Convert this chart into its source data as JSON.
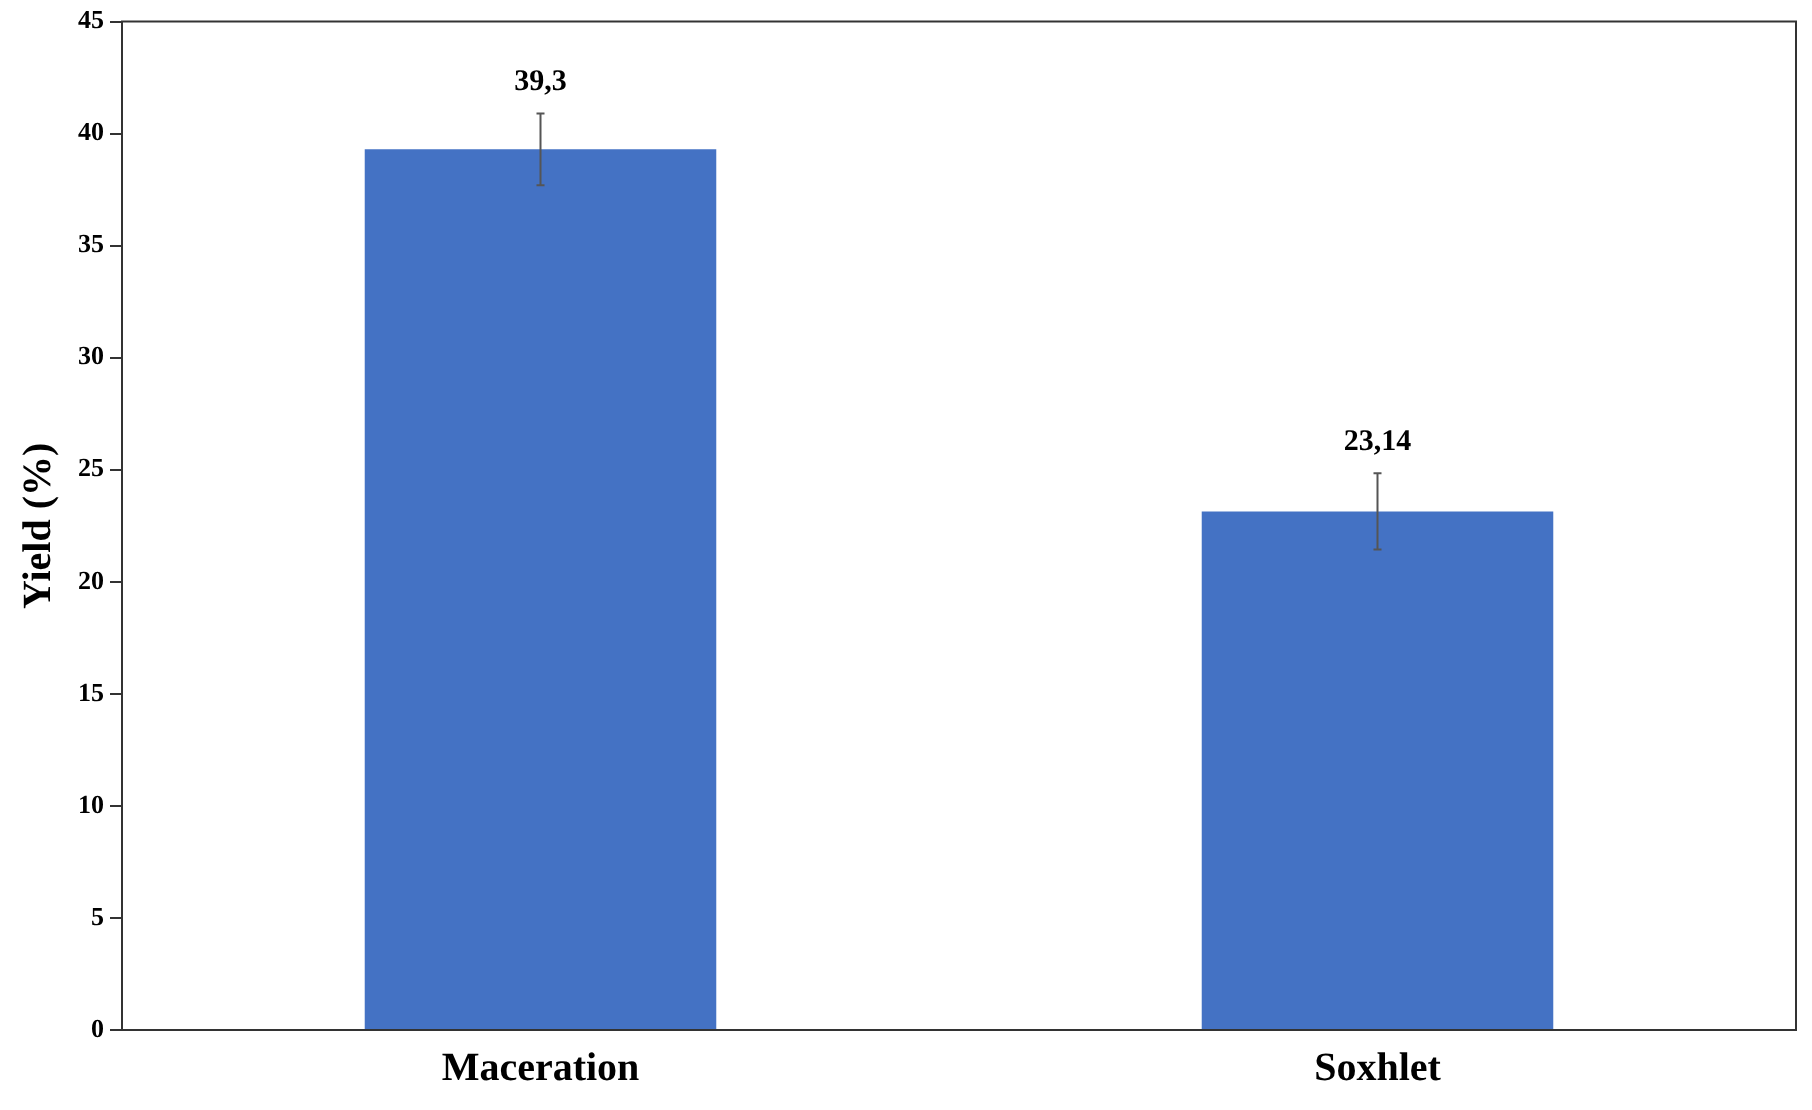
{
  "chart_data": {
    "type": "bar",
    "ylabel": "Yield (%)",
    "categories": [
      "Maceration",
      "Soxhlet"
    ],
    "series": [
      {
        "color": "#4472c4",
        "values": [
          39.3,
          23.14
        ],
        "errors": [
          1.6,
          1.7
        ],
        "value_labels": [
          "39,3",
          "23,14"
        ]
      }
    ],
    "ylim": [
      0,
      45
    ],
    "yticks": [
      0,
      5,
      10,
      15,
      20,
      25,
      30,
      35,
      40,
      45
    ],
    "grid": false,
    "legend": false
  }
}
